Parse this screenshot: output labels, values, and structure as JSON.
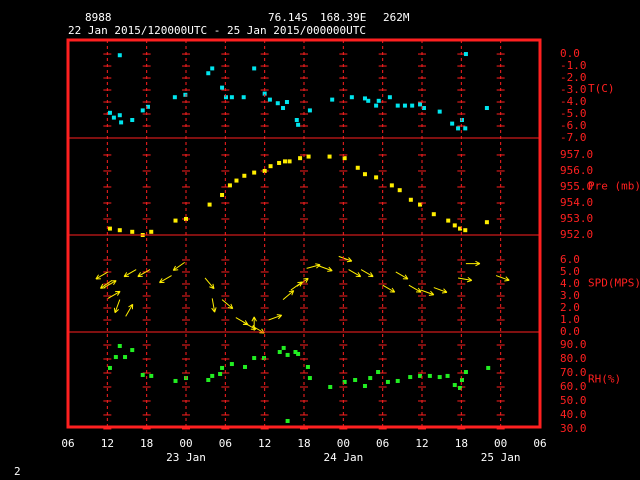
{
  "header": {
    "station": "8988",
    "latitude": "76.14S",
    "longitude": "168.39E",
    "elevation": "262M",
    "period": "22 Jan 2015/120000UTC - 25 Jan 2015/000000UTC"
  },
  "page_number": "2",
  "x_axis": {
    "xlim": [
      6,
      78
    ],
    "xticks": [
      {
        "value": 6,
        "label": "06"
      },
      12,
      18,
      {
        "value": 24,
        "label": "00"
      },
      {
        "value": 30,
        "label": "06"
      },
      {
        "value": 36,
        "label": "12"
      },
      {
        "value": 42,
        "label": "18"
      },
      {
        "value": 48,
        "label": "00"
      },
      {
        "value": 54,
        "label": "06"
      },
      {
        "value": 60,
        "label": "12"
      },
      {
        "value": 66,
        "label": "18"
      },
      {
        "value": 72,
        "label": "00"
      },
      {
        "value": 78,
        "label": "06"
      }
    ],
    "date_labels": [
      {
        "value": 24,
        "label": "23 Jan"
      },
      {
        "value": 48,
        "label": "24 Jan"
      },
      {
        "value": 72,
        "label": "25 Jan"
      }
    ]
  },
  "chart_data": [
    {
      "type": "scatter",
      "ylabel": "T(C)",
      "ylim": [
        -7,
        1.17
      ],
      "yticks": [
        {
          "value": 0,
          "label": "0.0"
        },
        {
          "value": -1,
          "label": "-1.0"
        },
        {
          "value": -2,
          "label": "-2.0"
        },
        {
          "value": -3,
          "label": "-3.0"
        },
        {
          "value": -4,
          "label": "-4.0"
        },
        {
          "value": -5,
          "label": "-5.0"
        },
        {
          "value": -6,
          "label": "-6.0"
        },
        {
          "value": -7,
          "label": "-7.0"
        }
      ],
      "series": [
        {
          "color": "#00e5ee",
          "x": [
            12.4,
            13.0,
            13.9,
            14.1,
            13.9,
            15.8,
            17.4,
            18.2,
            22.3,
            23.9,
            27.4,
            28.0,
            29.5,
            30.1,
            31.0,
            32.8,
            34.4,
            36.0,
            36.8,
            38.0,
            38.8,
            39.4,
            40.9,
            41.1,
            42.9,
            46.3,
            49.3,
            51.3,
            51.8,
            53.0,
            53.4,
            55.1,
            56.3,
            57.4,
            58.5,
            59.7,
            60.3,
            62.7,
            64.6,
            65.5,
            66.1,
            66.6,
            66.7,
            69.9
          ],
          "values": [
            -4.9,
            -5.3,
            -5.1,
            -5.7,
            -0.1,
            -5.5,
            -4.7,
            -4.4,
            -3.6,
            -3.4,
            -1.6,
            -1.2,
            -2.8,
            -3.6,
            -3.6,
            -3.6,
            -1.2,
            -3.3,
            -3.8,
            -4.1,
            -4.5,
            -4.0,
            -5.5,
            -5.9,
            -4.7,
            -3.8,
            -3.6,
            -3.7,
            -3.9,
            -4.3,
            -3.9,
            -3.6,
            -4.3,
            -4.3,
            -4.3,
            -4.2,
            -4.5,
            -4.8,
            -5.8,
            -6.2,
            -5.5,
            -6.2,
            0.0,
            -4.5
          ]
        }
      ]
    },
    {
      "type": "scatter",
      "ylabel": "Pre (mb)",
      "ylim": [
        952,
        958.06
      ],
      "yticks": [
        {
          "value": 957,
          "label": "957.0"
        },
        {
          "value": 956,
          "label": "956.0"
        },
        {
          "value": 955,
          "label": "955.0"
        },
        {
          "value": 954,
          "label": "954.0"
        },
        {
          "value": 953,
          "label": "953.0"
        },
        {
          "value": 952,
          "label": "952.0"
        }
      ],
      "series": [
        {
          "color": "#ffee00",
          "x": [
            12.4,
            13.9,
            15.8,
            17.4,
            18.7,
            22.4,
            24.0,
            27.6,
            29.5,
            30.7,
            31.7,
            32.9,
            34.4,
            36.0,
            36.9,
            38.2,
            39.1,
            39.8,
            41.4,
            42.7,
            45.9,
            48.2,
            50.2,
            51.3,
            53.0,
            55.4,
            56.6,
            58.3,
            59.7,
            61.8,
            64.0,
            65.0,
            65.8,
            66.6,
            69.9
          ],
          "values": [
            952.4,
            952.3,
            952.2,
            952.0,
            952.2,
            952.9,
            953.0,
            953.9,
            954.5,
            955.1,
            955.4,
            955.7,
            955.9,
            956.0,
            956.3,
            956.5,
            956.6,
            956.6,
            956.8,
            956.9,
            956.9,
            956.8,
            956.2,
            955.8,
            955.6,
            955.1,
            954.8,
            954.2,
            953.9,
            953.3,
            952.9,
            952.6,
            952.4,
            952.3,
            952.8
          ]
        }
      ]
    },
    {
      "type": "quiver",
      "ylabel": "SPD(MPS)",
      "ylim": [
        0,
        8.08
      ],
      "yticks": [
        {
          "value": 6,
          "label": "6.0"
        },
        {
          "value": 5,
          "label": "5.0"
        },
        {
          "value": 4,
          "label": "4.0"
        },
        {
          "value": 3,
          "label": "3.0"
        },
        {
          "value": 2,
          "label": "2.0"
        },
        {
          "value": 1,
          "label": "1.0"
        },
        {
          "value": 0,
          "label": "0.0"
        }
      ],
      "series": [
        {
          "color": "#ffee00",
          "x": [
            12.1,
            12.7,
            11.5,
            12.1,
            13.9,
            14.8,
            16.4,
            18.5,
            21.8,
            23.8,
            26.9,
            28.0,
            29.5,
            31.6,
            32.8,
            34.1,
            34.4,
            36.6,
            38.8,
            40.0,
            40.9,
            42.4,
            44.3,
            47.3,
            48.8,
            50.7,
            54.0,
            56.0,
            58.0,
            59.8,
            61.8,
            65.5,
            66.7,
            71.3
          ],
          "values": [
            5.0,
            4.3,
            3.7,
            2.8,
            2.7,
            1.3,
            5.2,
            5.2,
            4.7,
            5.8,
            4.5,
            2.8,
            2.7,
            1.2,
            0.8,
            0.5,
            0.1,
            1.0,
            2.7,
            3.5,
            3.8,
            5.3,
            5.5,
            6.3,
            5.2,
            5.2,
            3.9,
            5.0,
            3.9,
            3.5,
            3.7,
            4.5,
            5.7,
            4.7
          ],
          "directions": [
            210,
            215,
            30,
            30,
            250,
            60,
            210,
            210,
            210,
            215,
            310,
            280,
            320,
            330,
            330,
            330,
            90,
            20,
            40,
            35,
            35,
            15,
            340,
            340,
            330,
            330,
            330,
            330,
            330,
            340,
            340,
            350,
            0,
            340
          ]
        }
      ]
    },
    {
      "type": "scatter",
      "ylabel": "RH(%)",
      "ylim": [
        31.4,
        99.3
      ],
      "yticks": [
        {
          "value": 90,
          "label": "90.0"
        },
        {
          "value": 80,
          "label": "80.0"
        },
        {
          "value": 70,
          "label": "70.0"
        },
        {
          "value": 60,
          "label": "60.0"
        },
        {
          "value": 50,
          "label": "50.0"
        },
        {
          "value": 40,
          "label": "40.0"
        },
        {
          "value": 30,
          "label": "30.0"
        }
      ],
      "series": [
        {
          "color": "#22ee22",
          "x": [
            12.4,
            13.3,
            13.9,
            14.7,
            15.8,
            17.4,
            18.7,
            22.4,
            24.0,
            27.4,
            28.0,
            29.2,
            29.5,
            31.0,
            33.0,
            34.4,
            35.9,
            38.3,
            38.9,
            39.5,
            40.7,
            41.1,
            42.6,
            42.9,
            39.5,
            46.0,
            48.2,
            49.8,
            51.3,
            52.1,
            53.3,
            54.8,
            56.3,
            58.2,
            59.7,
            61.2,
            62.7,
            63.9,
            65.0,
            65.8,
            66.1,
            66.7,
            70.1
          ],
          "values": [
            73.6,
            81.4,
            89.3,
            81.4,
            86.4,
            68.6,
            67.9,
            64.3,
            66.4,
            65.0,
            67.9,
            69.3,
            73.6,
            76.4,
            74.3,
            80.7,
            80.7,
            85.0,
            87.9,
            82.9,
            85.0,
            83.6,
            74.3,
            66.4,
            35.7,
            60.0,
            63.6,
            65.0,
            60.7,
            66.4,
            70.7,
            63.6,
            64.3,
            67.1,
            67.9,
            67.9,
            67.1,
            67.9,
            61.4,
            59.3,
            65.0,
            70.7,
            73.6
          ]
        }
      ]
    }
  ]
}
